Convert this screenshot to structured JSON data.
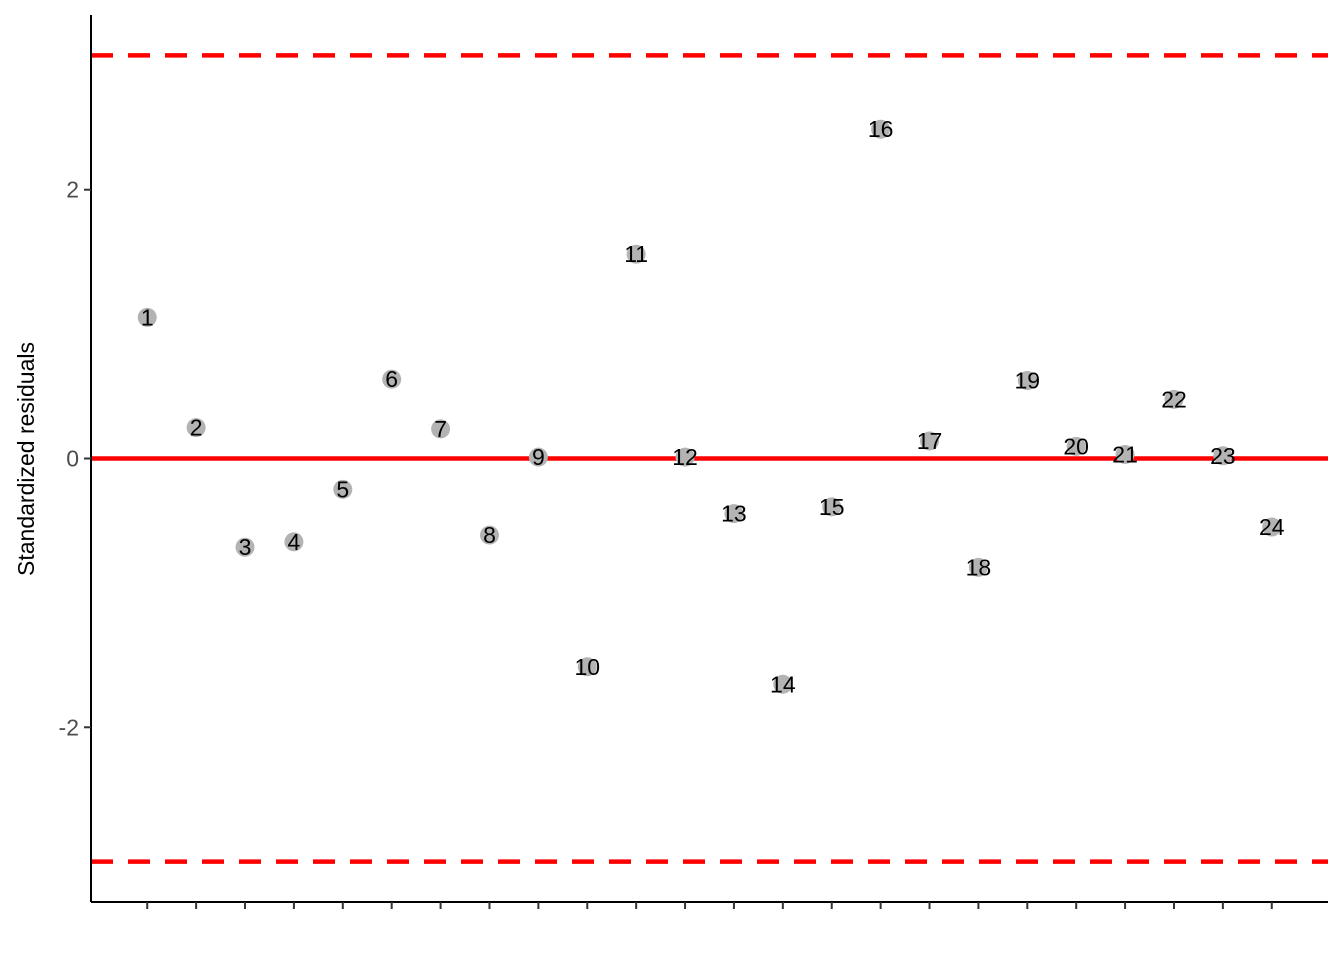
{
  "chart_data": {
    "type": "scatter",
    "title": "",
    "xlabel": "",
    "ylabel": "Standardized residuals",
    "xlim": [
      -0.15,
      25.15
    ],
    "ylim": [
      -3.3,
      3.3
    ],
    "yticks": [
      2,
      0,
      -2
    ],
    "ytick_labels": [
      "2",
      "0",
      "-2"
    ],
    "xticks": [
      1,
      2,
      3,
      4,
      5,
      6,
      7,
      8,
      9,
      10,
      11,
      12,
      13,
      14,
      15,
      16,
      17,
      18,
      19,
      20,
      21,
      22,
      23,
      24
    ],
    "grid": false,
    "points": {
      "x": [
        1,
        2,
        3,
        4,
        5,
        6,
        7,
        8,
        9,
        10,
        11,
        12,
        13,
        14,
        15,
        16,
        17,
        18,
        19,
        20,
        21,
        22,
        23,
        24
      ],
      "y": [
        1.05,
        0.23,
        -0.66,
        -0.62,
        -0.23,
        0.59,
        0.22,
        -0.57,
        0.01,
        -1.55,
        1.52,
        0.01,
        -0.41,
        -1.68,
        -0.36,
        2.45,
        0.13,
        -0.81,
        0.58,
        0.09,
        0.03,
        0.44,
        0.02,
        -0.51
      ],
      "labels": [
        "1",
        "2",
        "3",
        "4",
        "5",
        "6",
        "7",
        "8",
        "9",
        "10",
        "11",
        "12",
        "13",
        "14",
        "15",
        "16",
        "17",
        "18",
        "19",
        "20",
        "21",
        "22",
        "23",
        "24"
      ],
      "color": "#b3b3b3"
    },
    "reference_lines": [
      {
        "y": 0,
        "style": "solid",
        "color": "#ff0000"
      },
      {
        "y": 3,
        "style": "dashed",
        "color": "#ff0000"
      },
      {
        "y": -3,
        "style": "dashed",
        "color": "#ff0000"
      }
    ]
  }
}
